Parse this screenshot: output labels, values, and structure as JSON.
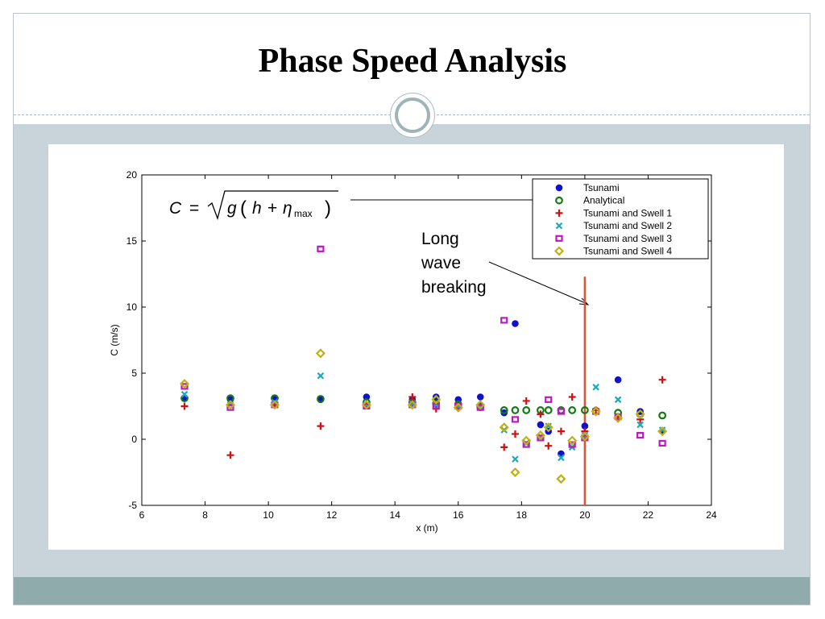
{
  "slide": {
    "title": "Phase Speed Analysis"
  },
  "colors": {
    "band": "#c8d4d9",
    "footer": "#8fabac",
    "vline": "#d4553a"
  },
  "chart_data": {
    "type": "scatter",
    "xlabel": "x (m)",
    "ylabel": "C (m/s)",
    "xlim": [
      6,
      24
    ],
    "ylim": [
      -5,
      20
    ],
    "xticks": [
      6,
      8,
      10,
      12,
      14,
      16,
      18,
      20,
      22,
      24
    ],
    "yticks": [
      -5,
      0,
      5,
      10,
      15,
      20
    ],
    "legend_position": "top-right",
    "equation": {
      "lhs": "C",
      "eq": "=",
      "g": "g",
      "h": "h",
      "plus": "+",
      "eta": "η",
      "sub": "max"
    },
    "annotation": [
      "Long",
      "wave",
      "breaking"
    ],
    "vertical_line_x": 20,
    "series": [
      {
        "name": "Tsunami",
        "marker": "dot",
        "color": "#1010d0",
        "points": [
          [
            7.35,
            3.1
          ],
          [
            8.8,
            3.0
          ],
          [
            10.2,
            3.05
          ],
          [
            11.65,
            3.0
          ],
          [
            13.1,
            3.2
          ],
          [
            14.55,
            3.0
          ],
          [
            15.3,
            3.2
          ],
          [
            16.0,
            3.0
          ],
          [
            16.7,
            3.2
          ],
          [
            17.45,
            2.0
          ],
          [
            17.8,
            8.75
          ],
          [
            18.6,
            1.1
          ],
          [
            18.85,
            0.6
          ],
          [
            19.25,
            -1.1
          ],
          [
            20.0,
            1.0
          ],
          [
            21.05,
            4.5
          ],
          [
            21.75,
            2.1
          ],
          [
            22.45,
            0.6
          ]
        ]
      },
      {
        "name": "Analytical",
        "marker": "circle",
        "color": "#117a11",
        "points": [
          [
            7.35,
            3.1
          ],
          [
            8.8,
            3.1
          ],
          [
            10.2,
            3.1
          ],
          [
            11.65,
            3.05
          ],
          [
            13.1,
            2.8
          ],
          [
            14.55,
            2.8
          ],
          [
            15.3,
            2.7
          ],
          [
            16.0,
            2.65
          ],
          [
            16.7,
            2.5
          ],
          [
            17.45,
            2.2
          ],
          [
            17.8,
            2.2
          ],
          [
            18.15,
            2.2
          ],
          [
            18.6,
            2.2
          ],
          [
            18.85,
            2.2
          ],
          [
            19.25,
            2.2
          ],
          [
            19.6,
            2.2
          ],
          [
            20.0,
            2.2
          ],
          [
            20.35,
            2.15
          ],
          [
            21.05,
            2.0
          ],
          [
            21.75,
            1.9
          ],
          [
            22.45,
            1.8
          ]
        ]
      },
      {
        "name": "Tsunami and Swell 1",
        "marker": "plus",
        "color": "#d01010",
        "points": [
          [
            7.35,
            2.5
          ],
          [
            8.8,
            -1.2
          ],
          [
            10.2,
            2.6
          ],
          [
            11.65,
            1.0
          ],
          [
            13.1,
            2.6
          ],
          [
            14.55,
            3.2
          ],
          [
            15.3,
            2.3
          ],
          [
            16.0,
            2.5
          ],
          [
            16.7,
            2.4
          ],
          [
            17.45,
            -0.6
          ],
          [
            17.8,
            0.4
          ],
          [
            18.15,
            2.9
          ],
          [
            18.6,
            1.9
          ],
          [
            18.85,
            -0.5
          ],
          [
            19.25,
            0.6
          ],
          [
            19.6,
            3.2
          ],
          [
            20.0,
            0.6
          ],
          [
            20.35,
            2.2
          ],
          [
            21.05,
            1.7
          ],
          [
            21.75,
            1.5
          ],
          [
            22.45,
            4.5
          ]
        ]
      },
      {
        "name": "Tsunami and Swell 2",
        "marker": "x",
        "color": "#1aa8c0",
        "points": [
          [
            7.35,
            3.4
          ],
          [
            8.8,
            2.6
          ],
          [
            10.2,
            2.8
          ],
          [
            11.65,
            4.8
          ],
          [
            13.1,
            2.6
          ],
          [
            14.55,
            2.7
          ],
          [
            15.3,
            2.6
          ],
          [
            16.0,
            2.5
          ],
          [
            16.7,
            2.5
          ],
          [
            17.45,
            0.7
          ],
          [
            17.8,
            -1.5
          ],
          [
            18.15,
            -0.3
          ],
          [
            18.6,
            0.2
          ],
          [
            18.85,
            1.0
          ],
          [
            19.25,
            -1.4
          ],
          [
            19.6,
            -0.6
          ],
          [
            20.0,
            0.3
          ],
          [
            20.35,
            3.95
          ],
          [
            21.05,
            3.0
          ],
          [
            21.75,
            1.1
          ],
          [
            22.45,
            0.7
          ]
        ]
      },
      {
        "name": "Tsunami and Swell 3",
        "marker": "square",
        "color": "#c018c0",
        "points": [
          [
            7.35,
            4.0
          ],
          [
            8.8,
            2.4
          ],
          [
            10.2,
            2.6
          ],
          [
            11.65,
            14.4
          ],
          [
            13.1,
            2.5
          ],
          [
            14.55,
            2.6
          ],
          [
            15.3,
            2.5
          ],
          [
            16.0,
            2.5
          ],
          [
            16.7,
            2.4
          ],
          [
            17.45,
            9.0
          ],
          [
            17.8,
            1.5
          ],
          [
            18.15,
            -0.4
          ],
          [
            18.6,
            0.1
          ],
          [
            18.85,
            3.0
          ],
          [
            19.25,
            2.1
          ],
          [
            19.6,
            -0.4
          ],
          [
            20.0,
            0.1
          ],
          [
            20.35,
            2.1
          ],
          [
            21.05,
            1.7
          ],
          [
            21.75,
            0.3
          ],
          [
            22.45,
            -0.3
          ]
        ]
      },
      {
        "name": "Tsunami and Swell 4",
        "marker": "diamond",
        "color": "#c0b010",
        "points": [
          [
            7.35,
            4.2
          ],
          [
            8.8,
            2.6
          ],
          [
            10.2,
            2.6
          ],
          [
            11.65,
            6.5
          ],
          [
            13.1,
            2.6
          ],
          [
            14.55,
            2.6
          ],
          [
            15.3,
            3.0
          ],
          [
            16.0,
            2.4
          ],
          [
            16.7,
            2.6
          ],
          [
            17.45,
            0.9
          ],
          [
            17.8,
            -2.5
          ],
          [
            18.15,
            -0.1
          ],
          [
            18.6,
            0.3
          ],
          [
            18.85,
            0.9
          ],
          [
            19.25,
            -3.0
          ],
          [
            19.6,
            -0.1
          ],
          [
            20.0,
            0.2
          ],
          [
            20.35,
            2.1
          ],
          [
            21.05,
            1.6
          ],
          [
            21.75,
            1.9
          ],
          [
            22.45,
            0.6
          ]
        ]
      }
    ]
  }
}
